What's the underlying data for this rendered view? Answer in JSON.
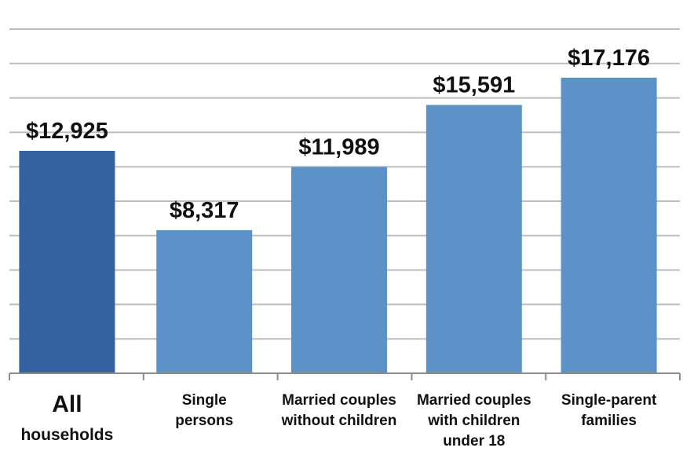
{
  "chart_data": {
    "type": "bar",
    "title": "",
    "xlabel": "",
    "ylabel": "",
    "ylim": [
      0,
      20000
    ],
    "grid": true,
    "legend": "none",
    "categories": [
      [
        "All",
        "households"
      ],
      [
        "Single",
        "persons"
      ],
      [
        "Married couples",
        "without children"
      ],
      [
        "Married couples",
        "with children",
        "under 18"
      ],
      [
        "Single-parent",
        "families"
      ]
    ],
    "values": [
      12925,
      8317,
      11989,
      15591,
      17176
    ],
    "value_labels": [
      "$12,925",
      "$8,317",
      "$11,989",
      "$15,591",
      "$17,176"
    ],
    "colors": {
      "highlight_bar": "#3461a0",
      "bar": "#5d92c9",
      "gridline": "#bdbdbd",
      "axis": "#8c8c8c"
    }
  }
}
